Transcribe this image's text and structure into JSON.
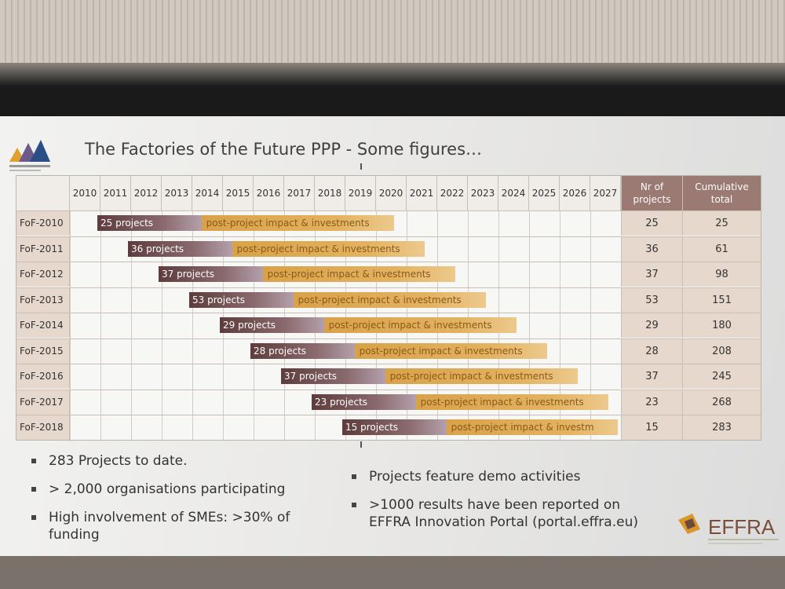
{
  "slide": {
    "title": "The Factories of the Future PPP - Some figures…",
    "years": [
      "2010",
      "2011",
      "2012",
      "2013",
      "2014",
      "2015",
      "2016",
      "2017",
      "2018",
      "2019",
      "2020",
      "2021",
      "2022",
      "2023",
      "2024",
      "2025",
      "2026",
      "2027"
    ],
    "col_nr_header": "Nr of projects",
    "col_cum_header": "Cumulative total",
    "rows": [
      {
        "label": "FoF-2010",
        "projects_label": "25 projects",
        "impact_label": "post-project impact & investments",
        "nr": "25",
        "cumulative": "25",
        "start_year_index": 1
      },
      {
        "label": "FoF-2011",
        "projects_label": "36 projects",
        "impact_label": "post-project impact & investments",
        "nr": "36",
        "cumulative": "61",
        "start_year_index": 2
      },
      {
        "label": "FoF-2012",
        "projects_label": "37 projects",
        "impact_label": "post-project impact & investments",
        "nr": "37",
        "cumulative": "98",
        "start_year_index": 3
      },
      {
        "label": "FoF-2013",
        "projects_label": "53 projects",
        "impact_label": "post-project impact & investments",
        "nr": "53",
        "cumulative": "151",
        "start_year_index": 4
      },
      {
        "label": "FoF-2014",
        "projects_label": "29 projects",
        "impact_label": "post-project impact & investments",
        "nr": "29",
        "cumulative": "180",
        "start_year_index": 5
      },
      {
        "label": "FoF-2015",
        "projects_label": "28 projects",
        "impact_label": "post-project impact & investments",
        "nr": "28",
        "cumulative": "208",
        "start_year_index": 6
      },
      {
        "label": "FoF-2016",
        "projects_label": "37 projects",
        "impact_label": "post-project impact & investments",
        "nr": "37",
        "cumulative": "245",
        "start_year_index": 7
      },
      {
        "label": "FoF-2017",
        "projects_label": "23 projects",
        "impact_label": "post-project impact & investments",
        "nr": "23",
        "cumulative": "268",
        "start_year_index": 8
      },
      {
        "label": "FoF-2018",
        "projects_label": "15 projects",
        "impact_label": "post-project impact & investm",
        "nr": "15",
        "cumulative": "283",
        "start_year_index": 9
      }
    ],
    "bullets_left": [
      "283 Projects to date.",
      "> 2,000 organisations participating",
      "High involvement of SMEs: >30% of funding"
    ],
    "bullets_right": [
      "Projects feature demo activities",
      ">1000 results have been reported on EFFRA Innovation Portal (portal.effra.eu)"
    ],
    "effra_logo_text": "EFFRA"
  }
}
